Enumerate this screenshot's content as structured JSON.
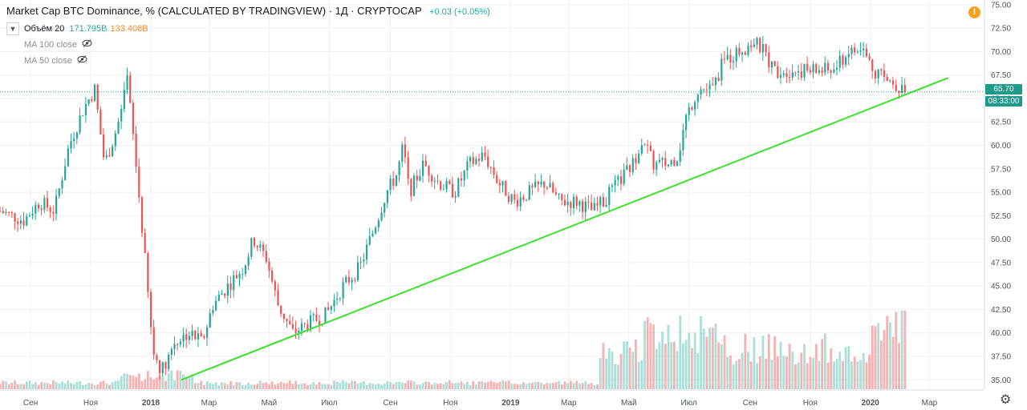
{
  "header": {
    "title": "Market Cap BTC Dominance, % (CALCULATED BY TRADINGVIEW) · 1Д · CRYPTOCAP",
    "change": "+0.03 (+0.05%)"
  },
  "indicators": {
    "volume_label": "Объём 20",
    "volume_value_1": "171.795B",
    "volume_value_2": "133.408B",
    "ma100_label": "MA 100 close",
    "ma50_label": "MA 50 close"
  },
  "price_scale": {
    "last_price": "65.70",
    "countdown": "08:33:00"
  },
  "colors": {
    "up": "#26a69a",
    "down": "#ef5350",
    "trendline": "#3fe02f",
    "price_line": "#1e9a8a",
    "alert": "#f7a11a"
  },
  "icons": {
    "alert": "exclamation-icon",
    "settings": "gear-icon",
    "visibility": "eye-off-icon",
    "collapse": "chevron-down-icon"
  },
  "chart_data": {
    "type": "candlestick",
    "title": "Market Cap BTC Dominance, % (CALCULATED BY TRADINGVIEW)",
    "interval": "1Д",
    "ylim": [
      34,
      75.5
    ],
    "y_ticks": [
      "35.00",
      "37.50",
      "40.00",
      "42.50",
      "45.00",
      "47.50",
      "50.00",
      "52.50",
      "55.00",
      "57.50",
      "60.00",
      "62.50",
      "65.00",
      "67.50",
      "70.00",
      "72.50",
      "75.00"
    ],
    "x_ticks": [
      "Сен",
      "Ноя",
      "2018",
      "Мар",
      "Май",
      "Июл",
      "Сен",
      "Ноя",
      "2019",
      "Мар",
      "Май",
      "Июл",
      "Сен",
      "Ноя",
      "2020",
      "Мар"
    ],
    "x_ticks_bold": [
      "2018",
      "2019",
      "2020"
    ],
    "grid": true,
    "last_price": 65.7,
    "series": [
      {
        "name": "BTC Dominance",
        "points": [
          {
            "date": "2017-08-01",
            "value": 53
          },
          {
            "date": "2017-08-25",
            "value": 52
          },
          {
            "date": "2017-09-10",
            "value": 54
          },
          {
            "date": "2017-09-25",
            "value": 53
          },
          {
            "date": "2017-10-10",
            "value": 60
          },
          {
            "date": "2017-10-25",
            "value": 64
          },
          {
            "date": "2017-11-05",
            "value": 66
          },
          {
            "date": "2017-11-15",
            "value": 58
          },
          {
            "date": "2017-11-25",
            "value": 61
          },
          {
            "date": "2017-12-03",
            "value": 64
          },
          {
            "date": "2017-12-08",
            "value": 67
          },
          {
            "date": "2017-12-15",
            "value": 60
          },
          {
            "date": "2017-12-25",
            "value": 49
          },
          {
            "date": "2018-01-03",
            "value": 38
          },
          {
            "date": "2018-01-12",
            "value": 36
          },
          {
            "date": "2018-01-25",
            "value": 39
          },
          {
            "date": "2018-02-08",
            "value": 40
          },
          {
            "date": "2018-02-22",
            "value": 39
          },
          {
            "date": "2018-03-05",
            "value": 43
          },
          {
            "date": "2018-03-20",
            "value": 45
          },
          {
            "date": "2018-04-05",
            "value": 47
          },
          {
            "date": "2018-04-15",
            "value": 50
          },
          {
            "date": "2018-04-28",
            "value": 48
          },
          {
            "date": "2018-05-10",
            "value": 43
          },
          {
            "date": "2018-05-25",
            "value": 40
          },
          {
            "date": "2018-06-10",
            "value": 41
          },
          {
            "date": "2018-06-28",
            "value": 42
          },
          {
            "date": "2018-07-15",
            "value": 45
          },
          {
            "date": "2018-08-01",
            "value": 47
          },
          {
            "date": "2018-08-15",
            "value": 51
          },
          {
            "date": "2018-08-28",
            "value": 55
          },
          {
            "date": "2018-09-08",
            "value": 57
          },
          {
            "date": "2018-09-14",
            "value": 60
          },
          {
            "date": "2018-09-20",
            "value": 55
          },
          {
            "date": "2018-10-05",
            "value": 58
          },
          {
            "date": "2018-10-20",
            "value": 56
          },
          {
            "date": "2018-11-05",
            "value": 55
          },
          {
            "date": "2018-11-20",
            "value": 58
          },
          {
            "date": "2018-12-05",
            "value": 59
          },
          {
            "date": "2018-12-20",
            "value": 56
          },
          {
            "date": "2019-01-05",
            "value": 54
          },
          {
            "date": "2019-01-20",
            "value": 55
          },
          {
            "date": "2019-02-05",
            "value": 56
          },
          {
            "date": "2019-02-20",
            "value": 54
          },
          {
            "date": "2019-03-10",
            "value": 54
          },
          {
            "date": "2019-03-25",
            "value": 53
          },
          {
            "date": "2019-04-05",
            "value": 54
          },
          {
            "date": "2019-04-20",
            "value": 56
          },
          {
            "date": "2019-05-05",
            "value": 58
          },
          {
            "date": "2019-05-15",
            "value": 61
          },
          {
            "date": "2019-05-25",
            "value": 58
          },
          {
            "date": "2019-06-10",
            "value": 58
          },
          {
            "date": "2019-06-20",
            "value": 59
          },
          {
            "date": "2019-06-28",
            "value": 63
          },
          {
            "date": "2019-07-10",
            "value": 66
          },
          {
            "date": "2019-07-25",
            "value": 66
          },
          {
            "date": "2019-08-05",
            "value": 69
          },
          {
            "date": "2019-08-20",
            "value": 70
          },
          {
            "date": "2019-09-05",
            "value": 71
          },
          {
            "date": "2019-09-15",
            "value": 70
          },
          {
            "date": "2019-09-25",
            "value": 68
          },
          {
            "date": "2019-10-10",
            "value": 68
          },
          {
            "date": "2019-10-25",
            "value": 68
          },
          {
            "date": "2019-11-10",
            "value": 68
          },
          {
            "date": "2019-11-25",
            "value": 68
          },
          {
            "date": "2019-12-10",
            "value": 70
          },
          {
            "date": "2019-12-25",
            "value": 70
          },
          {
            "date": "2020-01-05",
            "value": 68
          },
          {
            "date": "2020-01-15",
            "value": 67
          },
          {
            "date": "2020-01-25",
            "value": 66.8
          },
          {
            "date": "2020-02-05",
            "value": 65.7
          }
        ]
      }
    ],
    "volume_label": "Объём 20",
    "trendline": [
      {
        "date": "2018-02-01",
        "value": 35.0
      },
      {
        "date": "2020-03-20",
        "value": 67.2
      }
    ]
  }
}
